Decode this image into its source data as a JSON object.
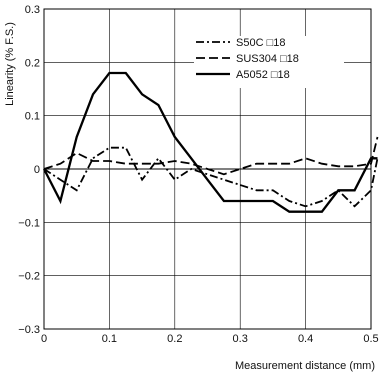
{
  "chart_data": {
    "type": "line",
    "title": "",
    "xlabel": "Measurement distance (mm)",
    "ylabel": "Linearity (% F.S.)",
    "xlim": [
      0,
      0.5
    ],
    "ylim": [
      -0.3,
      0.3
    ],
    "x_ticks": [
      0,
      0.1,
      0.2,
      0.3,
      0.4,
      0.5
    ],
    "x_tick_labels": [
      "0",
      "0.1",
      "0.2",
      "0.3",
      "0.4",
      "0.5"
    ],
    "y_ticks": [
      -0.3,
      -0.2,
      -0.1,
      0,
      0.1,
      0.2,
      0.3
    ],
    "y_tick_labels": [
      "−0.3",
      "−0.2",
      "−0.1",
      "0",
      "0.1",
      "0.2",
      "0.3"
    ],
    "grid": true,
    "legend_position": "top-right",
    "series": [
      {
        "name": "S50C □18",
        "dash": "dash-dot",
        "x": [
          0,
          0.025,
          0.05,
          0.075,
          0.1,
          0.125,
          0.15,
          0.175,
          0.2,
          0.225,
          0.25,
          0.275,
          0.3,
          0.325,
          0.35,
          0.375,
          0.4,
          0.425,
          0.45,
          0.475,
          0.5,
          0.51
        ],
        "y": [
          0,
          -0.02,
          -0.04,
          0.02,
          0.04,
          0.04,
          -0.02,
          0.02,
          -0.02,
          0,
          -0.01,
          -0.02,
          -0.03,
          -0.04,
          -0.04,
          -0.06,
          -0.07,
          -0.06,
          -0.04,
          -0.07,
          -0.04,
          0.02
        ]
      },
      {
        "name": "SUS304 □18",
        "dash": "dash",
        "x": [
          0,
          0.025,
          0.05,
          0.075,
          0.1,
          0.125,
          0.15,
          0.175,
          0.2,
          0.225,
          0.25,
          0.275,
          0.3,
          0.325,
          0.35,
          0.375,
          0.4,
          0.425,
          0.45,
          0.475,
          0.5,
          0.51
        ],
        "y": [
          0,
          0.01,
          0.03,
          0.015,
          0.015,
          0.01,
          0.01,
          0.01,
          0.015,
          0.01,
          0,
          -0.01,
          0,
          0.01,
          0.01,
          0.01,
          0.02,
          0.01,
          0.005,
          0.005,
          0.01,
          0.06
        ]
      },
      {
        "name": "A5052 □18",
        "dash": "solid",
        "x": [
          0,
          0.025,
          0.05,
          0.075,
          0.1,
          0.125,
          0.15,
          0.175,
          0.2,
          0.225,
          0.25,
          0.275,
          0.3,
          0.325,
          0.35,
          0.375,
          0.4,
          0.425,
          0.45,
          0.475,
          0.5,
          0.51
        ],
        "y": [
          0,
          -0.06,
          0.06,
          0.14,
          0.18,
          0.18,
          0.14,
          0.12,
          0.06,
          0.02,
          -0.02,
          -0.06,
          -0.06,
          -0.06,
          -0.06,
          -0.08,
          -0.08,
          -0.08,
          -0.04,
          -0.04,
          0.02,
          0.02
        ]
      }
    ]
  }
}
